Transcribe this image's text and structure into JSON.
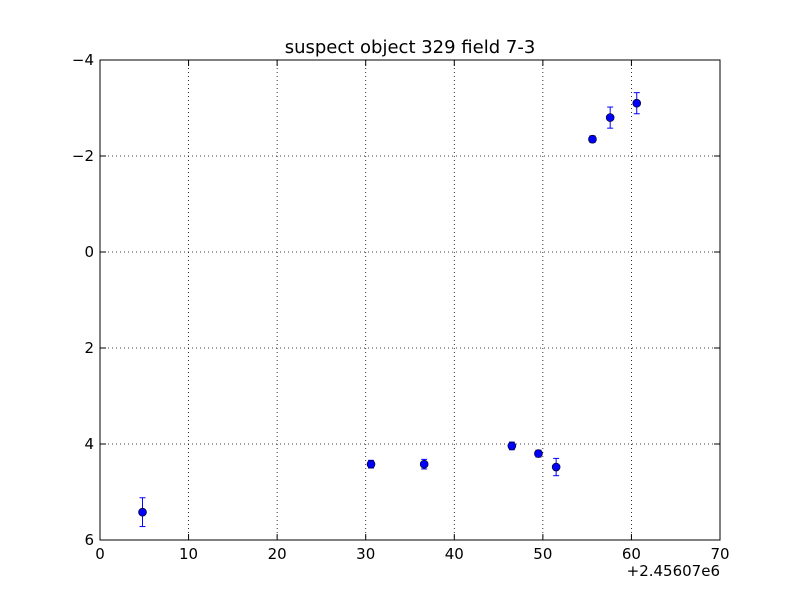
{
  "chart_data": {
    "type": "scatter",
    "title": "suspect object 329 field 7-3",
    "xlabel": "",
    "ylabel": "",
    "x_offset_label": "+2.45607e6",
    "xlim": [
      0,
      70
    ],
    "ylim": [
      6,
      -4
    ],
    "y_inverted": true,
    "grid": true,
    "x_ticks": [
      0,
      10,
      20,
      30,
      40,
      50,
      60,
      70
    ],
    "y_ticks": [
      -4,
      -2,
      0,
      2,
      4,
      6
    ],
    "x_tick_labels": [
      "0",
      "10",
      "20",
      "30",
      "40",
      "50",
      "60",
      "70"
    ],
    "y_tick_labels": [
      "−4",
      "−2",
      "0",
      "2",
      "4",
      "6"
    ],
    "marker_color": "#0000ff",
    "series": [
      {
        "points": [
          {
            "x": 4.8,
            "y": 5.42,
            "err": 0.3
          },
          {
            "x": 30.6,
            "y": 4.42,
            "err": 0.08
          },
          {
            "x": 36.6,
            "y": 4.42,
            "err": 0.1
          },
          {
            "x": 46.5,
            "y": 4.04,
            "err": 0.08
          },
          {
            "x": 49.5,
            "y": 4.2,
            "err": 0.07
          },
          {
            "x": 51.5,
            "y": 4.48,
            "err": 0.18
          },
          {
            "x": 55.6,
            "y": -2.35,
            "err": 0.07
          },
          {
            "x": 57.6,
            "y": -2.8,
            "err": 0.22
          },
          {
            "x": 60.6,
            "y": -3.1,
            "err": 0.22
          }
        ]
      }
    ]
  }
}
